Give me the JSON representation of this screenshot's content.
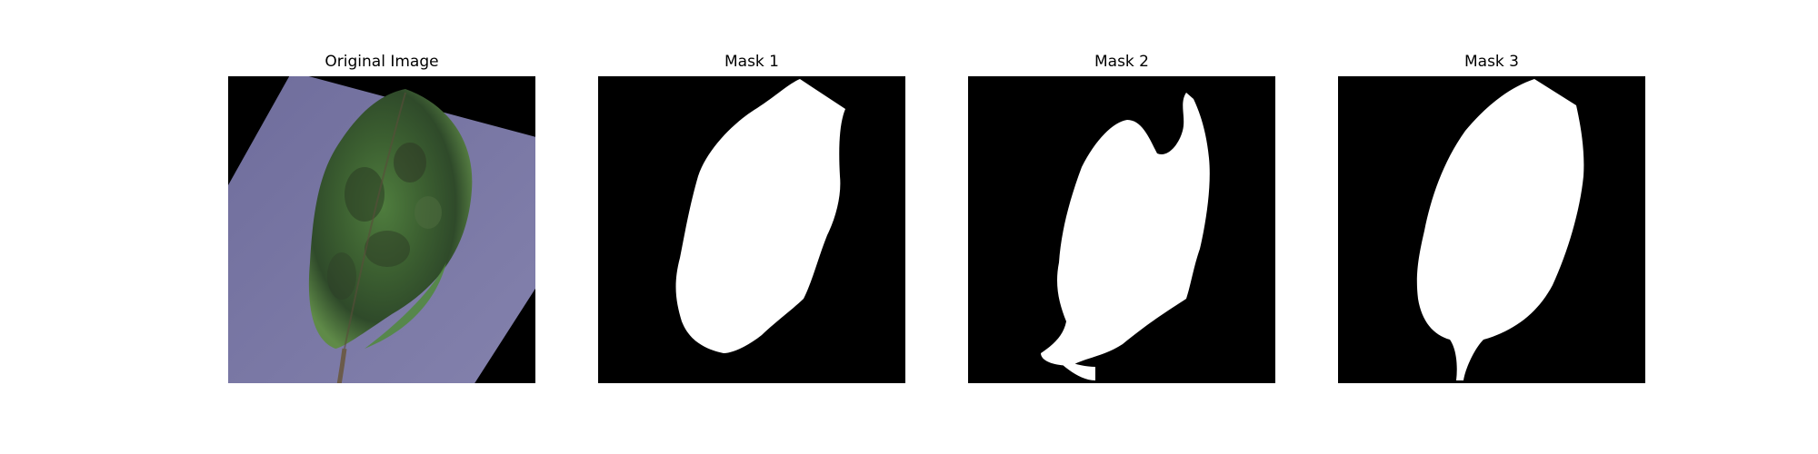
{
  "figure": {
    "panels": [
      {
        "title": "Original Image",
        "content": "leaf photo on purple background"
      },
      {
        "title": "Mask 1",
        "content": "white leaf mask on black"
      },
      {
        "title": "Mask 2",
        "content": "white leaf mask on black"
      },
      {
        "title": "Mask 3",
        "content": "white leaf mask on black"
      }
    ]
  },
  "colors": {
    "background": "#ffffff",
    "mask_background": "#000000",
    "mask_foreground": "#ffffff",
    "paper_purple": "#7a78a6",
    "leaf_green": "#3e6a33"
  }
}
